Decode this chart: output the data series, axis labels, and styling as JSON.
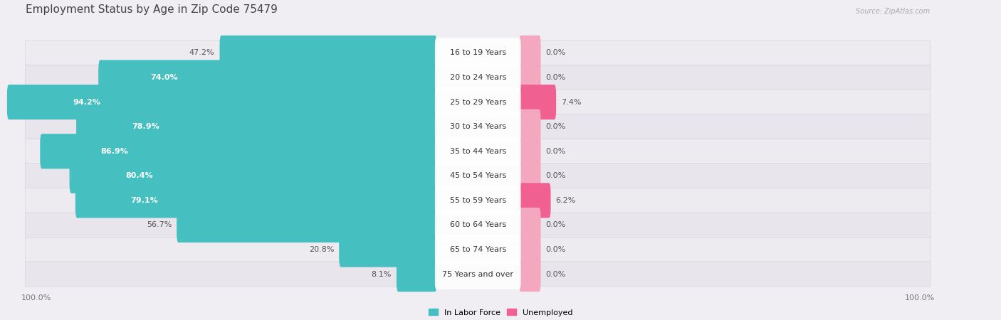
{
  "title": "Employment Status by Age in Zip Code 75479",
  "source": "Source: ZipAtlas.com",
  "categories": [
    "16 to 19 Years",
    "20 to 24 Years",
    "25 to 29 Years",
    "30 to 34 Years",
    "35 to 44 Years",
    "45 to 54 Years",
    "55 to 59 Years",
    "60 to 64 Years",
    "65 to 74 Years",
    "75 Years and over"
  ],
  "labor_force": [
    47.2,
    74.0,
    94.2,
    78.9,
    86.9,
    80.4,
    79.1,
    56.7,
    20.8,
    8.1
  ],
  "unemployed": [
    0.0,
    0.0,
    7.4,
    0.0,
    0.0,
    0.0,
    6.2,
    0.0,
    0.0,
    0.0
  ],
  "labor_color": "#45bfbf",
  "labor_color_light": "#7dd4d4",
  "unemployed_color": "#f4a8c0",
  "unemployed_color_dark": "#f06090",
  "row_colors": [
    "#edeaf0",
    "#e8e5ec",
    "#edeaf0",
    "#e8e5ec",
    "#edeaf0",
    "#e8e5ec",
    "#edeaf0",
    "#e8e5ec",
    "#edeaf0",
    "#e8e5ec"
  ],
  "bg_color": "#f0edf3",
  "title_color": "#444444",
  "label_color": "#555555",
  "white": "#ffffff",
  "title_fontsize": 11,
  "source_fontsize": 7,
  "bar_label_fontsize": 8,
  "cat_fontsize": 8,
  "legend_fontsize": 8,
  "axis_label_fontsize": 8
}
